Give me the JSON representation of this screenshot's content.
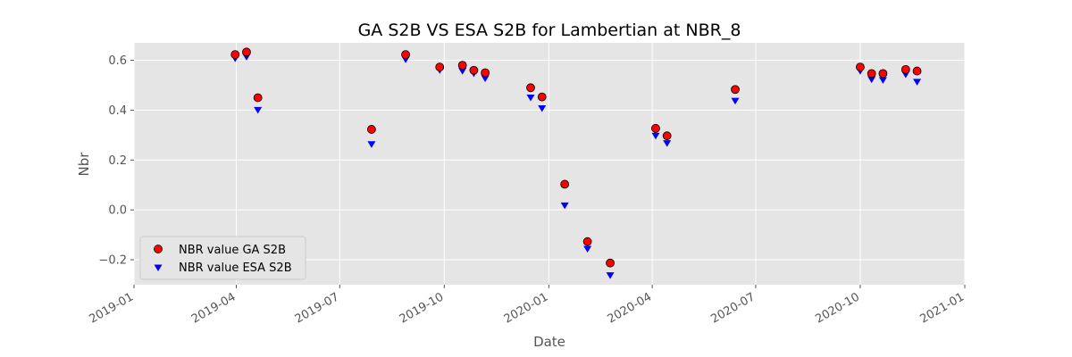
{
  "chart_data": {
    "type": "scatter",
    "title": "GA S2B VS ESA S2B for Lambertian at NBR_8",
    "xlabel": "Date",
    "ylabel": "Nbr",
    "xlim": [
      "2019-01-01",
      "2021-01-01"
    ],
    "ylim": [
      -0.3,
      0.67
    ],
    "x_ticks": [
      "2019-01",
      "2019-04",
      "2019-07",
      "2019-10",
      "2020-01",
      "2020-04",
      "2020-07",
      "2020-10",
      "2021-01"
    ],
    "y_ticks": [
      -0.2,
      0.0,
      0.2,
      0.4,
      0.6
    ],
    "y_tick_labels": [
      "−0.2",
      "0.0",
      "0.2",
      "0.4",
      "0.6"
    ],
    "grid": true,
    "legend_position": "lower-left",
    "colors": {
      "background": "#e5e5e5",
      "grid": "#ffffff",
      "ga": "#ff0000",
      "esa": "#0000ff"
    },
    "series": [
      {
        "name": "NBR value GA S2B",
        "marker": "circle",
        "points": [
          {
            "x": "2019-03-31",
            "y": 0.623
          },
          {
            "x": "2019-04-10",
            "y": 0.633
          },
          {
            "x": "2019-04-20",
            "y": 0.45
          },
          {
            "x": "2019-07-29",
            "y": 0.323
          },
          {
            "x": "2019-08-28",
            "y": 0.623
          },
          {
            "x": "2019-09-27",
            "y": 0.573
          },
          {
            "x": "2019-10-17",
            "y": 0.58
          },
          {
            "x": "2019-10-27",
            "y": 0.56
          },
          {
            "x": "2019-11-06",
            "y": 0.55
          },
          {
            "x": "2019-12-16",
            "y": 0.49
          },
          {
            "x": "2019-12-26",
            "y": 0.453
          },
          {
            "x": "2020-01-15",
            "y": 0.103
          },
          {
            "x": "2020-02-04",
            "y": -0.127
          },
          {
            "x": "2020-02-24",
            "y": -0.213
          },
          {
            "x": "2020-04-04",
            "y": 0.327
          },
          {
            "x": "2020-04-14",
            "y": 0.297
          },
          {
            "x": "2020-06-13",
            "y": 0.483
          },
          {
            "x": "2020-10-01",
            "y": 0.573
          },
          {
            "x": "2020-10-11",
            "y": 0.547
          },
          {
            "x": "2020-10-21",
            "y": 0.547
          },
          {
            "x": "2020-11-10",
            "y": 0.563
          },
          {
            "x": "2020-11-20",
            "y": 0.557
          }
        ]
      },
      {
        "name": "NBR value ESA S2B",
        "marker": "triangle-down",
        "points": [
          {
            "x": "2019-03-31",
            "y": 0.607
          },
          {
            "x": "2019-04-10",
            "y": 0.613
          },
          {
            "x": "2019-04-20",
            "y": 0.4
          },
          {
            "x": "2019-07-29",
            "y": 0.263
          },
          {
            "x": "2019-08-28",
            "y": 0.603
          },
          {
            "x": "2019-09-27",
            "y": 0.56
          },
          {
            "x": "2019-10-17",
            "y": 0.557
          },
          {
            "x": "2019-10-27",
            "y": 0.547
          },
          {
            "x": "2019-11-06",
            "y": 0.527
          },
          {
            "x": "2019-12-16",
            "y": 0.45
          },
          {
            "x": "2019-12-26",
            "y": 0.407
          },
          {
            "x": "2020-01-15",
            "y": 0.017
          },
          {
            "x": "2020-02-04",
            "y": -0.157
          },
          {
            "x": "2020-02-24",
            "y": -0.263
          },
          {
            "x": "2020-04-04",
            "y": 0.297
          },
          {
            "x": "2020-04-14",
            "y": 0.267
          },
          {
            "x": "2020-06-13",
            "y": 0.437
          },
          {
            "x": "2020-10-01",
            "y": 0.557
          },
          {
            "x": "2020-10-11",
            "y": 0.523
          },
          {
            "x": "2020-10-21",
            "y": 0.52
          },
          {
            "x": "2020-11-10",
            "y": 0.543
          },
          {
            "x": "2020-11-20",
            "y": 0.513
          }
        ]
      }
    ]
  }
}
